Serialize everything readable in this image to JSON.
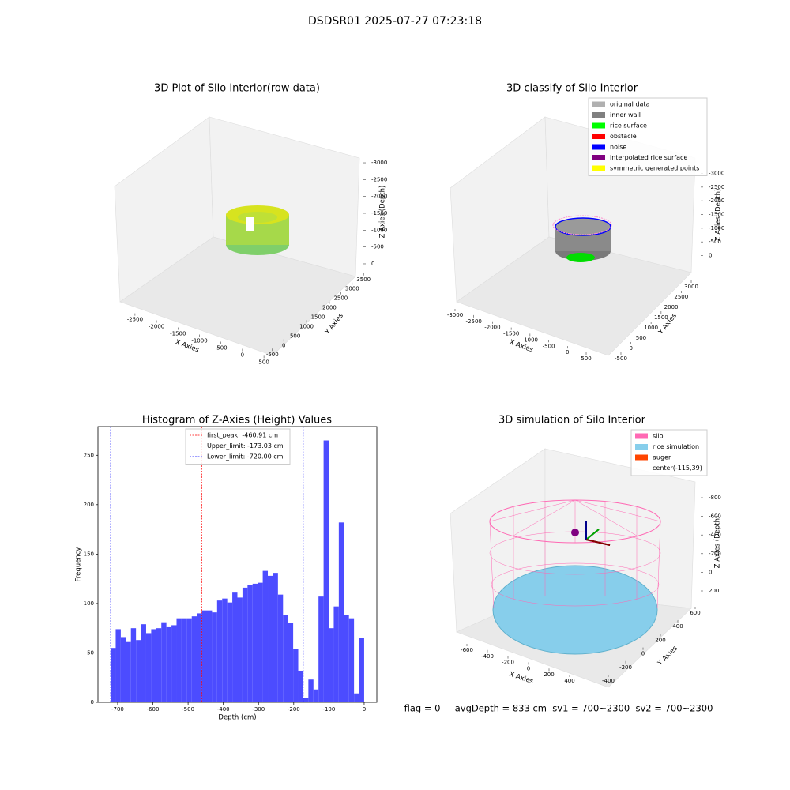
{
  "title": "DSDSR01 2025-07-27 07:23:18",
  "footer": "flag = 0     avgDepth = 833 cm  sv1 = 700~2300  sv2 = 700~2300",
  "chart_data": [
    {
      "type": "scatter3d",
      "title": "3D Plot of Silo Interior(row data)",
      "xlabel": "X Axies",
      "ylabel": "Y Axies",
      "zlabel": "Z Axies (Depth)",
      "xlim": [
        -2700,
        700
      ],
      "xticks": [
        -2500,
        -2000,
        -1500,
        -1000,
        -500,
        0,
        500
      ],
      "ylim": [
        -700,
        3700
      ],
      "yticks": [
        -500,
        0,
        500,
        1000,
        1500,
        2000,
        2500,
        3000,
        3500
      ],
      "zlim": [
        -3200,
        200
      ],
      "zticks": [
        0,
        -500,
        -1000,
        -1500,
        -2000,
        -2500,
        -3000
      ]
    },
    {
      "type": "scatter3d",
      "title": "3D classify of Silo Interior",
      "xlabel": "X Axies",
      "ylabel": "Y Axies",
      "zlabel": "Z Axies (Depth)",
      "xlim": [
        -3200,
        700
      ],
      "xticks": [
        -3000,
        -2500,
        -2000,
        -1500,
        -1000,
        -500,
        0,
        500
      ],
      "ylim": [
        -700,
        3200
      ],
      "yticks": [
        -500,
        0,
        500,
        1000,
        1500,
        2000,
        2500,
        3000
      ],
      "zlim": [
        -3200,
        300
      ],
      "zticks": [
        0,
        -500,
        -1000,
        -1500,
        -2000,
        -2500,
        -3000
      ],
      "legend": [
        {
          "name": "original data",
          "color": "#b0b0b0"
        },
        {
          "name": "inner wall",
          "color": "#808080"
        },
        {
          "name": "rice surface",
          "color": "#00ff00"
        },
        {
          "name": "obstacle",
          "color": "#ff0000"
        },
        {
          "name": "noise",
          "color": "#0000ff"
        },
        {
          "name": "interpolated rice surface",
          "color": "#800080"
        },
        {
          "name": "symmetric generated points",
          "color": "#ffff00"
        }
      ]
    },
    {
      "type": "histogram",
      "title": "Histogram of Z-Axies (Height) Values",
      "xlabel": "Depth (cm)",
      "ylabel": "Frequency",
      "color": "#4c4cff",
      "bins": [
        -720,
        -705.6,
        -691.2,
        -676.8,
        -662.4,
        -648,
        -633.6,
        -619.2,
        -604.8,
        -590.4,
        -576,
        -561.6,
        -547.2,
        -532.8,
        -518.4,
        -504,
        -489.6,
        -475.2,
        -460.8,
        -446.4,
        -432,
        -417.6,
        -403.2,
        -388.8,
        -374.4,
        -360,
        -345.6,
        -331.2,
        -316.8,
        -302.4,
        -288,
        -273.6,
        -259.2,
        -244.8,
        -230.4,
        -216,
        -201.6,
        -187.2,
        -172.8,
        -158.4,
        -144,
        -129.6,
        -115.2,
        -100.8,
        -86.4,
        -72,
        -57.6,
        -43.2,
        -28.8,
        -14.4,
        0
      ],
      "values": [
        55,
        74,
        66,
        61,
        75,
        63,
        79,
        70,
        74,
        75,
        81,
        76,
        78,
        85,
        85,
        85,
        87,
        90,
        93,
        93,
        91,
        103,
        105,
        101,
        111,
        106,
        116,
        119,
        120,
        121,
        133,
        128,
        131,
        109,
        88,
        80,
        54,
        32,
        4,
        23,
        13,
        107,
        265,
        75,
        97,
        182,
        88,
        85,
        9,
        65
      ],
      "xlim": [
        -756,
        36
      ],
      "xticks": [
        -700,
        -600,
        -500,
        -400,
        -300,
        -200,
        -100,
        0
      ],
      "ylim": [
        0,
        279
      ],
      "yticks": [
        0,
        50,
        100,
        150,
        200,
        250
      ],
      "lines": [
        {
          "name": "first_peak: -460.91 cm",
          "value": -460.91,
          "color": "#ff0000"
        },
        {
          "name": "Upper_limit: -173.03 cm",
          "value": -173.03,
          "color": "#0000ff"
        },
        {
          "name": "Lower_limit: -720.00 cm",
          "value": -720,
          "color": "#0000ff"
        }
      ]
    },
    {
      "type": "wireframe3d",
      "title": "3D simulation of Silo Interior",
      "xlabel": "X Axies",
      "ylabel": "Y Axies",
      "zlabel": "Z Axies (Depth)",
      "xlim": [
        -700,
        500
      ],
      "xticks": [
        -600,
        -400,
        -200,
        0,
        200,
        400
      ],
      "ylim": [
        -500,
        700
      ],
      "yticks": [
        -400,
        -200,
        0,
        200,
        400,
        600
      ],
      "zlim": [
        -900,
        300
      ],
      "zticks": [
        200,
        0,
        -200,
        -400,
        -600,
        -800
      ],
      "legend": [
        {
          "name": "silo",
          "color": "#ff69b4"
        },
        {
          "name": "rice simulation",
          "color": "#87ceeb"
        },
        {
          "name": "auger",
          "color": "#ff4500"
        },
        {
          "name": "center(-115,39)"
        }
      ]
    }
  ]
}
